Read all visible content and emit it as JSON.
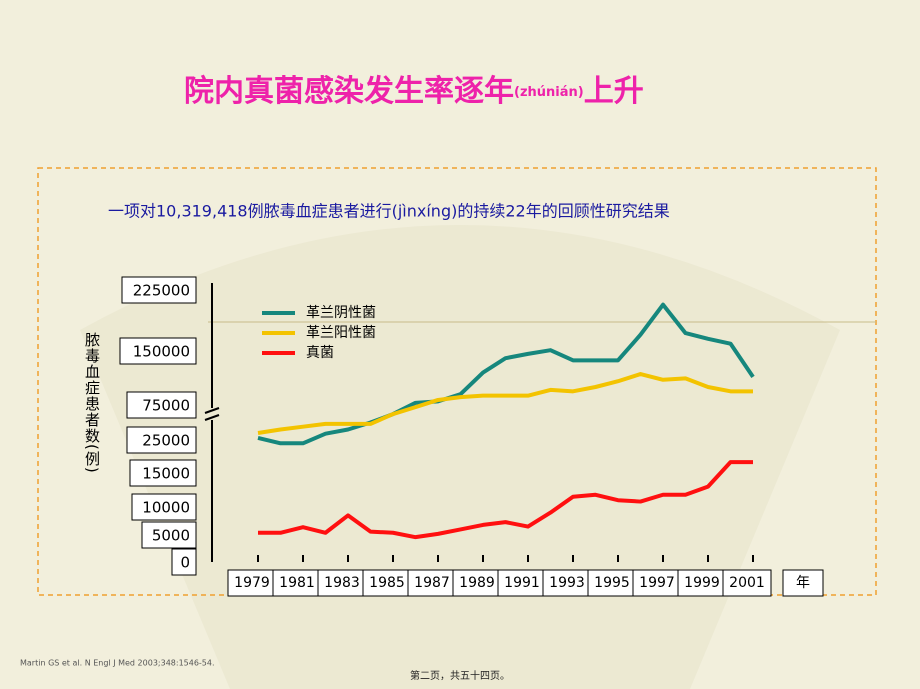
{
  "chart_data": {
    "type": "line",
    "title": "院内真菌感染发生率逐年",
    "title_pinyin": "(zhúnián)",
    "title_end": "上升",
    "subtitle": "一项对10,319,418例脓毒血症患者进行(jìnxíng)的持续22年的回顾性研究结果",
    "ylabel": "脓毒血症患者数(例)",
    "xlabel": "年",
    "x": [
      1979,
      1980,
      1981,
      1982,
      1983,
      1984,
      1985,
      1986,
      1987,
      1988,
      1989,
      1990,
      1991,
      1992,
      1993,
      1994,
      1995,
      1996,
      1997,
      1998,
      1999,
      2000,
      2001
    ],
    "xlim": [
      1979,
      2001
    ],
    "xticks": [
      1979,
      1981,
      1983,
      1985,
      1987,
      1989,
      1991,
      1993,
      1995,
      1997,
      1999,
      2001
    ],
    "ylim": [
      0,
      225000
    ],
    "yticks": [
      0,
      5000,
      10000,
      15000,
      25000,
      75000,
      150000,
      225000
    ],
    "series": [
      {
        "name": "革兰阴性菌",
        "color": "#16877d",
        "values": [
          28000,
          24000,
          24000,
          34000,
          40000,
          50000,
          62000,
          78000,
          80000,
          90000,
          120000,
          140000,
          146000,
          151000,
          137000,
          137000,
          137000,
          170000,
          207000,
          172000,
          165000,
          159000,
          114000
        ]
      },
      {
        "name": "革兰阳性菌",
        "color": "#f3c300",
        "values": [
          35000,
          40000,
          44000,
          48000,
          48000,
          48000,
          62000,
          72000,
          82000,
          86000,
          88000,
          88000,
          88000,
          96000,
          94000,
          100000,
          108000,
          118000,
          110000,
          112000,
          100000,
          94000,
          94000
        ]
      },
      {
        "name": "真菌",
        "color": "#ff1010",
        "values": [
          5400,
          5400,
          6400,
          5400,
          8500,
          5600,
          5400,
          4600,
          5200,
          6000,
          6800,
          7300,
          6500,
          9000,
          11500,
          11800,
          11000,
          10800,
          11800,
          11800,
          13000,
          18300,
          18300
        ]
      }
    ],
    "legend": "upper left",
    "footnote": "Martin GS et al. N Engl J Med 2003;348:1546-54.",
    "page_note": "第二页，共五十四页。"
  }
}
